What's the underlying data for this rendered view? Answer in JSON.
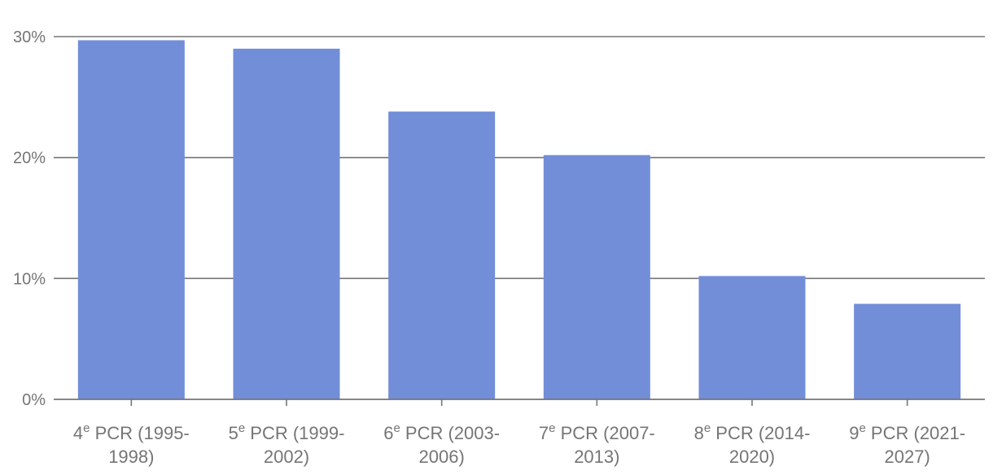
{
  "chart_data": {
    "type": "bar",
    "title": "",
    "xlabel": "",
    "ylabel": "",
    "ylim": [
      0,
      30
    ],
    "y_ticks": [
      {
        "value": 0,
        "label": "0%"
      },
      {
        "value": 10,
        "label": "10%"
      },
      {
        "value": 20,
        "label": "20%"
      },
      {
        "value": 30,
        "label": "30%"
      }
    ],
    "categories": [
      {
        "num": "4",
        "sup": "e",
        "line1": " PCR (1995-",
        "line2": "1998)"
      },
      {
        "num": "5",
        "sup": "e",
        "line1": " PCR (1999-",
        "line2": "2002)"
      },
      {
        "num": "6",
        "sup": "e",
        "line1": " PCR (2003-",
        "line2": "2006)"
      },
      {
        "num": "7",
        "sup": "e",
        "line1": " PCR (2007-",
        "line2": "2013)"
      },
      {
        "num": "8",
        "sup": "e",
        "line1": " PCR (2014-",
        "line2": "2020)"
      },
      {
        "num": "9",
        "sup": "e",
        "line1": " PCR (2021-",
        "line2": "2027)"
      }
    ],
    "values": [
      29.7,
      29.0,
      23.8,
      20.2,
      10.2,
      7.9
    ],
    "grid": true,
    "legend": "none",
    "bar_color": "#728ed8",
    "grid_color": "#757575",
    "axis_color": "#757575"
  }
}
